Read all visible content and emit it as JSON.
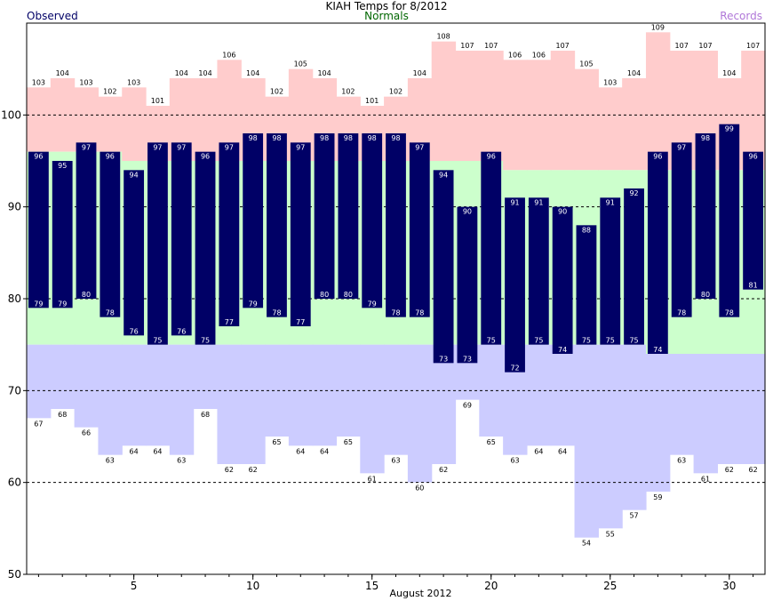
{
  "header": {
    "observed_label": "Observed",
    "title": "KIAH Temps for 8/2012",
    "normals_label": "Normals",
    "records_label": "Records"
  },
  "colors": {
    "observed": "#000066",
    "record_high": "#ffcccc",
    "normal": "#ccffcc",
    "record_low": "#ccccff",
    "grid": "#000000"
  },
  "chart_data": {
    "type": "bar",
    "title": "KIAH Temps for 8/2012",
    "xlabel": "August 2012",
    "ylabel": "",
    "ylim": [
      50,
      110
    ],
    "yticks": [
      50,
      60,
      70,
      80,
      90,
      100
    ],
    "gridlines_y": [
      60,
      70,
      80,
      90,
      100
    ],
    "xticks": [
      5,
      10,
      15,
      20,
      25,
      30
    ],
    "days": [
      1,
      2,
      3,
      4,
      5,
      6,
      7,
      8,
      9,
      10,
      11,
      12,
      13,
      14,
      15,
      16,
      17,
      18,
      19,
      20,
      21,
      22,
      23,
      24,
      25,
      26,
      27,
      28,
      29,
      30,
      31
    ],
    "series": [
      {
        "name": "Observed High",
        "values": [
          96,
          95,
          97,
          96,
          94,
          97,
          97,
          96,
          97,
          98,
          98,
          97,
          98,
          98,
          98,
          98,
          97,
          94,
          90,
          96,
          91,
          91,
          90,
          88,
          91,
          92,
          96,
          97,
          98,
          99,
          96
        ]
      },
      {
        "name": "Observed Low",
        "values": [
          79,
          79,
          80,
          78,
          76,
          75,
          76,
          75,
          77,
          79,
          78,
          77,
          80,
          80,
          79,
          78,
          78,
          73,
          73,
          75,
          72,
          75,
          74,
          75,
          75,
          75,
          74,
          78,
          80,
          78,
          81
        ]
      },
      {
        "name": "Record High",
        "values": [
          103,
          104,
          103,
          102,
          103,
          101,
          104,
          104,
          106,
          104,
          102,
          105,
          104,
          102,
          101,
          102,
          104,
          108,
          107,
          107,
          106,
          106,
          107,
          105,
          103,
          104,
          109,
          107,
          107,
          104,
          107
        ]
      },
      {
        "name": "Record Low",
        "values": [
          67,
          68,
          66,
          63,
          64,
          64,
          63,
          68,
          62,
          62,
          65,
          64,
          64,
          65,
          61,
          63,
          60,
          62,
          69,
          65,
          63,
          64,
          64,
          54,
          55,
          57,
          59,
          63,
          61,
          62,
          62
        ]
      },
      {
        "name": "Normal High",
        "values": [
          96,
          96,
          96,
          96,
          95,
          95,
          95,
          95,
          95,
          95,
          95,
          95,
          95,
          95,
          95,
          95,
          95,
          95,
          95,
          95,
          94,
          94,
          94,
          94,
          94,
          94,
          94,
          94,
          94,
          94,
          94
        ]
      },
      {
        "name": "Normal Low",
        "values": [
          75,
          75,
          75,
          75,
          75,
          75,
          75,
          75,
          75,
          75,
          75,
          75,
          75,
          75,
          75,
          75,
          75,
          75,
          75,
          75,
          75,
          75,
          75,
          75,
          75,
          75,
          74,
          74,
          74,
          74,
          74
        ]
      }
    ]
  }
}
